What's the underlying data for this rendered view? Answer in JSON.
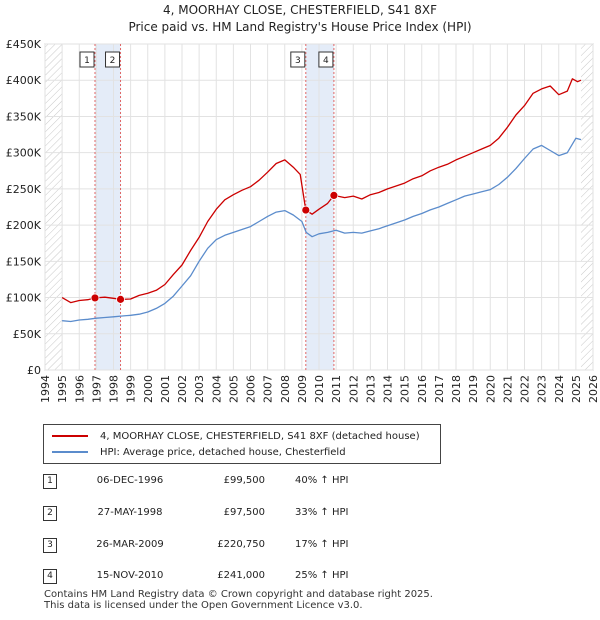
{
  "title_line1": "4, MOORHAY CLOSE, CHESTERFIELD, S41 8XF",
  "title_line2": "Price paid vs. HM Land Registry's House Price Index (HPI)",
  "chart_data": {
    "type": "line",
    "title": "4, MOORHAY CLOSE, CHESTERFIELD, S41 8XF — Price paid vs. HM Land Registry's House Price Index (HPI)",
    "xlim": [
      1994,
      2026
    ],
    "ylim": [
      0,
      450000
    ],
    "x_ticks": [
      1994,
      1995,
      1996,
      1997,
      1998,
      1999,
      2000,
      2001,
      2002,
      2003,
      2004,
      2005,
      2006,
      2007,
      2008,
      2009,
      2010,
      2011,
      2012,
      2013,
      2014,
      2015,
      2016,
      2017,
      2018,
      2019,
      2020,
      2021,
      2022,
      2023,
      2024,
      2025,
      2026
    ],
    "y_ticks": [
      {
        "value": 0,
        "label": "£0"
      },
      {
        "value": 50000,
        "label": "£50K"
      },
      {
        "value": 100000,
        "label": "£100K"
      },
      {
        "value": 150000,
        "label": "£150K"
      },
      {
        "value": 200000,
        "label": "£200K"
      },
      {
        "value": 250000,
        "label": "£250K"
      },
      {
        "value": 300000,
        "label": "£300K"
      },
      {
        "value": 350000,
        "label": "£350K"
      },
      {
        "value": 400000,
        "label": "£400K"
      },
      {
        "value": 450000,
        "label": "£450K"
      }
    ],
    "series": [
      {
        "name": "4, MOORHAY CLOSE, CHESTERFIELD, S41 8XF (detached house)",
        "color": "#cc0000",
        "x": [
          1995.0,
          1995.5,
          1996.0,
          1996.5,
          1996.92,
          1997.5,
          1998.0,
          1998.41,
          1999.0,
          1999.5,
          2000.0,
          2000.5,
          2001.0,
          2001.5,
          2002.0,
          2002.5,
          2003.0,
          2003.5,
          2004.0,
          2004.5,
          2005.0,
          2005.5,
          2006.0,
          2006.5,
          2007.0,
          2007.5,
          2008.0,
          2008.5,
          2008.9,
          2009.23,
          2009.6,
          2010.0,
          2010.5,
          2010.87,
          2011.5,
          2012.0,
          2012.5,
          2013.0,
          2013.5,
          2014.0,
          2014.5,
          2015.0,
          2015.5,
          2016.0,
          2016.5,
          2017.0,
          2017.5,
          2018.0,
          2018.5,
          2019.0,
          2019.5,
          2020.0,
          2020.5,
          2021.0,
          2021.5,
          2022.0,
          2022.5,
          2023.0,
          2023.5,
          2024.0,
          2024.5,
          2024.8,
          2025.1,
          2025.3
        ],
        "values": [
          100000,
          93000,
          96000,
          97000,
          99500,
          100500,
          99000,
          97500,
          98000,
          103000,
          106000,
          110000,
          118000,
          132000,
          145000,
          165000,
          183000,
          205000,
          222000,
          235000,
          242000,
          248000,
          253000,
          262000,
          273000,
          285000,
          290000,
          280000,
          270000,
          220750,
          215000,
          222000,
          230000,
          241000,
          238000,
          240000,
          236000,
          242000,
          245000,
          250000,
          254000,
          258000,
          264000,
          268000,
          275000,
          280000,
          284000,
          290000,
          295000,
          300000,
          305000,
          310000,
          320000,
          335000,
          352000,
          365000,
          382000,
          388000,
          392000,
          380000,
          385000,
          402000,
          398000,
          400000
        ]
      },
      {
        "name": "HPI: Average price, detached house, Chesterfield",
        "color": "#5b8ccc",
        "x": [
          1995.0,
          1995.5,
          1996.0,
          1996.5,
          1997.0,
          1997.5,
          1998.0,
          1998.5,
          1999.0,
          1999.5,
          2000.0,
          2000.5,
          2001.0,
          2001.5,
          2002.0,
          2002.5,
          2003.0,
          2003.5,
          2004.0,
          2004.5,
          2005.0,
          2005.5,
          2006.0,
          2006.5,
          2007.0,
          2007.5,
          2008.0,
          2008.5,
          2009.0,
          2009.25,
          2009.6,
          2010.0,
          2010.5,
          2011.0,
          2011.5,
          2012.0,
          2012.5,
          2013.0,
          2013.5,
          2014.0,
          2014.5,
          2015.0,
          2015.5,
          2016.0,
          2016.5,
          2017.0,
          2017.5,
          2018.0,
          2018.5,
          2019.0,
          2019.5,
          2020.0,
          2020.5,
          2021.0,
          2021.5,
          2022.0,
          2022.5,
          2023.0,
          2023.5,
          2024.0,
          2024.5,
          2025.0,
          2025.3
        ],
        "values": [
          68000,
          67000,
          69000,
          70000,
          71500,
          72500,
          73500,
          74500,
          75500,
          77000,
          80000,
          85000,
          92000,
          102000,
          116000,
          130000,
          150000,
          168000,
          180000,
          186000,
          190000,
          194000,
          198000,
          205000,
          212000,
          218000,
          220000,
          214000,
          205000,
          190000,
          184000,
          188000,
          190000,
          193000,
          189000,
          190000,
          189000,
          192000,
          195000,
          199000,
          203000,
          207000,
          212000,
          216000,
          221000,
          225000,
          230000,
          235000,
          240000,
          243000,
          246000,
          249000,
          256000,
          266000,
          278000,
          292000,
          305000,
          310000,
          303000,
          296000,
          300000,
          320000,
          318000
        ]
      }
    ],
    "sale_points": [
      {
        "label": "1",
        "x": 1996.92,
        "value": 99500
      },
      {
        "label": "2",
        "x": 1998.41,
        "value": 97500
      },
      {
        "label": "3",
        "x": 2009.23,
        "value": 220750
      },
      {
        "label": "4",
        "x": 2010.87,
        "value": 241000
      }
    ],
    "shaded_periods": [
      [
        1996.92,
        1998.41
      ],
      [
        2009.23,
        2010.87
      ]
    ],
    "future_hatch_from": 2025.3
  },
  "legend": {
    "property": "4, MOORHAY CLOSE, CHESTERFIELD, S41 8XF (detached house)",
    "hpi": "HPI: Average price, detached house, Chesterfield",
    "property_color": "#cc0000",
    "hpi_color": "#5b8ccc"
  },
  "sales": [
    {
      "num": "1",
      "date": "06-DEC-1996",
      "price": "£99,500",
      "hpi": "40% ↑ HPI"
    },
    {
      "num": "2",
      "date": "27-MAY-1998",
      "price": "£97,500",
      "hpi": "33% ↑ HPI"
    },
    {
      "num": "3",
      "date": "26-MAR-2009",
      "price": "£220,750",
      "hpi": "17% ↑ HPI"
    },
    {
      "num": "4",
      "date": "15-NOV-2010",
      "price": "£241,000",
      "hpi": "25% ↑ HPI"
    }
  ],
  "footer": {
    "line1": "Contains HM Land Registry data © Crown copyright and database right 2025.",
    "line2": "This data is licensed under the Open Government Licence v3.0."
  }
}
